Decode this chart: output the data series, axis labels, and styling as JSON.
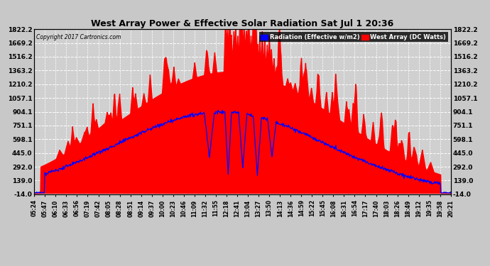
{
  "title": "West Array Power & Effective Solar Radiation Sat Jul 1 20:36",
  "copyright": "Copyright 2017 Cartronics.com",
  "legend_labels": [
    "Radiation (Effective w/m2)",
    "West Array (DC Watts)"
  ],
  "legend_colors": [
    "blue",
    "red"
  ],
  "yticks": [
    -14.0,
    139.0,
    292.0,
    445.0,
    598.1,
    751.1,
    904.1,
    1057.1,
    1210.2,
    1363.2,
    1516.2,
    1669.2,
    1822.2
  ],
  "ylim": [
    -14.0,
    1822.2
  ],
  "bg_color": "#c8c8c8",
  "plot_bg_color": "#d0d0d0",
  "grid_color": "white",
  "fill_color": "red",
  "line_color": "blue",
  "xtick_labels": [
    "05:24",
    "05:47",
    "06:10",
    "06:33",
    "06:56",
    "07:19",
    "07:42",
    "08:05",
    "08:28",
    "08:51",
    "09:14",
    "09:37",
    "10:00",
    "10:23",
    "10:46",
    "11:09",
    "11:32",
    "11:55",
    "12:18",
    "12:41",
    "13:04",
    "13:27",
    "13:50",
    "14:13",
    "14:36",
    "14:59",
    "15:22",
    "15:45",
    "16:08",
    "16:31",
    "16:54",
    "17:17",
    "17:40",
    "18:03",
    "18:26",
    "18:49",
    "19:12",
    "19:35",
    "19:58",
    "20:21"
  ]
}
